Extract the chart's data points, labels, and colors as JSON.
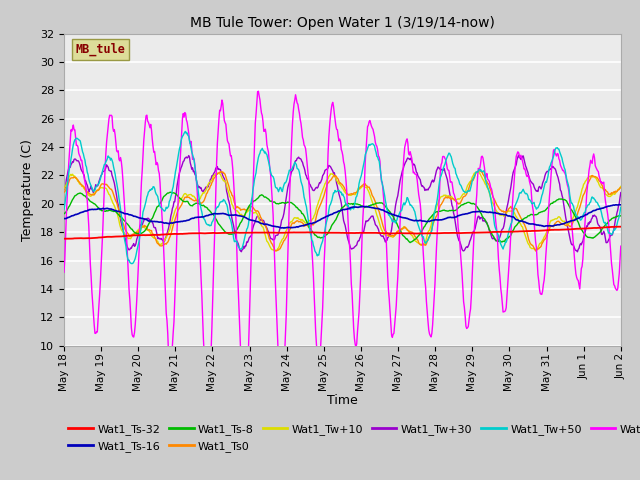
{
  "title": "MB Tule Tower: Open Water 1 (3/19/14-now)",
  "xlabel": "Time",
  "ylabel": "Temperature (C)",
  "ylim": [
    10,
    32
  ],
  "yticks": [
    10,
    12,
    14,
    16,
    18,
    20,
    22,
    24,
    26,
    28,
    30,
    32
  ],
  "plot_bg_color": "#ebebeb",
  "series_colors": {
    "Wat1_Ts-32": "#ff0000",
    "Wat1_Ts-16": "#0000bb",
    "Wat1_Ts-8": "#00bb00",
    "Wat1_Ts0": "#ff8800",
    "Wat1_Tw+10": "#dddd00",
    "Wat1_Tw+30": "#9900cc",
    "Wat1_Tw+50": "#00cccc",
    "Wat1_Tw100": "#ff00ff"
  },
  "day_labels": [
    "May 18",
    "May 19",
    "May 20",
    "May 21",
    "May 22",
    "May 23",
    "May 24",
    "May 25",
    "May 26",
    "May 27",
    "May 28",
    "May 29",
    "May 30",
    "May 31",
    "Jun 1",
    "Jun 2"
  ],
  "mb_tule_box_color": "#dddd99",
  "mb_tule_text_color": "#880000"
}
